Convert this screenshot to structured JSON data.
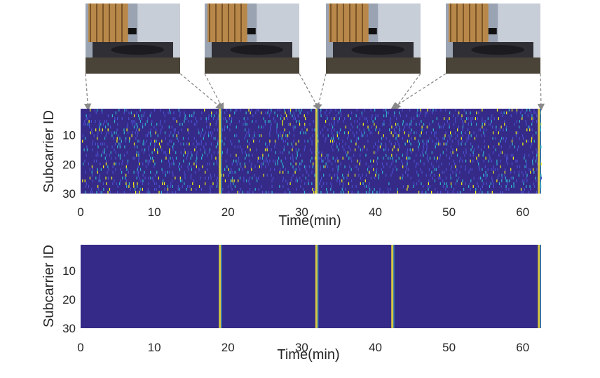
{
  "photos": [
    {
      "name": "photo-1",
      "points_to_min": [
        1,
        19
      ]
    },
    {
      "name": "photo-2",
      "points_to_min": [
        19.2,
        32.2
      ]
    },
    {
      "name": "photo-3",
      "points_to_min": [
        32.2,
        42.8
      ]
    },
    {
      "name": "photo-4",
      "points_to_min": [
        42.5,
        62.5
      ]
    }
  ],
  "chart_data": [
    {
      "type": "heatmap",
      "panel": "top",
      "ylabel": "Subcarrier ID",
      "xlabel": "Time(min)",
      "xticks": [
        0,
        10,
        20,
        30,
        40,
        50,
        60
      ],
      "yticks": [
        10,
        20,
        30
      ],
      "xlim": [
        0,
        62.5
      ],
      "ylim": [
        1,
        30
      ],
      "grid": false,
      "colormap": "parula",
      "background": "dense scattered speckle noise",
      "events_min": [
        18.9,
        32.0,
        62.2
      ]
    },
    {
      "type": "heatmap",
      "panel": "bottom",
      "ylabel": "Subcarrier ID",
      "xlabel": "Time(min)",
      "xticks": [
        0,
        10,
        20,
        30,
        40,
        50,
        60
      ],
      "yticks": [
        10,
        20,
        30
      ],
      "xlim": [
        0,
        62.5
      ],
      "ylim": [
        1,
        30
      ],
      "grid": false,
      "colormap": "parula",
      "background": "uniform",
      "events_min": [
        18.9,
        32.0,
        42.3,
        62.2
      ]
    }
  ],
  "colors": {
    "background": "#352a87",
    "low": "#3e26a8",
    "mid": "#2fb5cf",
    "high": "#f9fb0e",
    "event": "#e8d73a",
    "arrow": "#8a8a8a"
  }
}
